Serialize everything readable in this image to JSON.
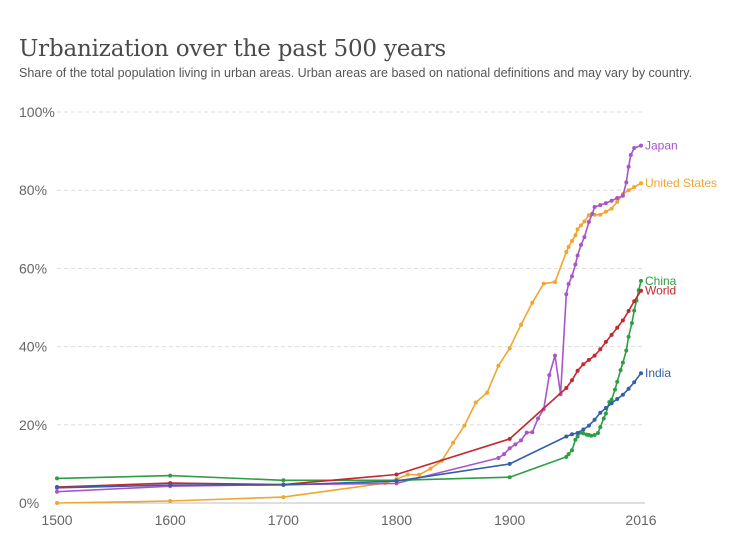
{
  "chart_data": {
    "type": "line",
    "title": "Urbanization over the past 500 years",
    "subtitle": "Share of the total population living in urban areas. Urban areas are based on national definitions and may vary by country.",
    "xlabel": "",
    "ylabel": "",
    "xlim": [
      1500,
      2016
    ],
    "ylim": [
      0,
      100
    ],
    "x_ticks": [
      1500,
      1600,
      1700,
      1800,
      1900,
      2016
    ],
    "y_ticks": [
      0,
      20,
      40,
      60,
      80,
      100
    ],
    "y_tick_format": "{v}%",
    "grid": "horizontal dashed",
    "legend": "inline labels at line ends",
    "series": [
      {
        "name": "United States",
        "color": "#f0a62f",
        "points": [
          [
            1500,
            0
          ],
          [
            1600,
            0.5
          ],
          [
            1700,
            1.5
          ],
          [
            1790,
            5.1
          ],
          [
            1800,
            6.1
          ],
          [
            1810,
            7.3
          ],
          [
            1820,
            7.2
          ],
          [
            1830,
            8.8
          ],
          [
            1840,
            10.8
          ],
          [
            1850,
            15.4
          ],
          [
            1860,
            19.8
          ],
          [
            1870,
            25.7
          ],
          [
            1880,
            28.2
          ],
          [
            1890,
            35.1
          ],
          [
            1900,
            39.6
          ],
          [
            1910,
            45.6
          ],
          [
            1920,
            51.2
          ],
          [
            1930,
            56.1
          ],
          [
            1940,
            56.5
          ],
          [
            1950,
            64.2
          ],
          [
            1952,
            65.5
          ],
          [
            1955,
            67
          ],
          [
            1958,
            68.5
          ],
          [
            1960,
            70
          ],
          [
            1963,
            71
          ],
          [
            1966,
            72
          ],
          [
            1970,
            73.6
          ],
          [
            1975,
            73.7
          ],
          [
            1980,
            73.7
          ],
          [
            1985,
            74.5
          ],
          [
            1990,
            75.3
          ],
          [
            1995,
            77
          ],
          [
            2000,
            79
          ],
          [
            2005,
            80
          ],
          [
            2010,
            80.8
          ],
          [
            2016,
            81.8
          ]
        ]
      },
      {
        "name": "Japan",
        "color": "#a855c8",
        "points": [
          [
            1500,
            2.9
          ],
          [
            1600,
            4.3
          ],
          [
            1700,
            4.7
          ],
          [
            1800,
            5
          ],
          [
            1890,
            11.5
          ],
          [
            1895,
            12.5
          ],
          [
            1900,
            14
          ],
          [
            1905,
            15
          ],
          [
            1910,
            16
          ],
          [
            1915,
            18
          ],
          [
            1920,
            18.1
          ],
          [
            1925,
            21.6
          ],
          [
            1930,
            24
          ],
          [
            1935,
            32.7
          ],
          [
            1940,
            37.7
          ],
          [
            1945,
            27.8
          ],
          [
            1950,
            53.4
          ],
          [
            1952,
            56
          ],
          [
            1955,
            58
          ],
          [
            1958,
            61
          ],
          [
            1960,
            63.3
          ],
          [
            1963,
            66
          ],
          [
            1966,
            68
          ],
          [
            1970,
            71.9
          ],
          [
            1973,
            74
          ],
          [
            1975,
            75.7
          ],
          [
            1980,
            76.2
          ],
          [
            1985,
            76.7
          ],
          [
            1990,
            77.3
          ],
          [
            1995,
            78
          ],
          [
            2000,
            78.6
          ],
          [
            2003,
            82
          ],
          [
            2005,
            86
          ],
          [
            2007,
            89
          ],
          [
            2010,
            90.8
          ],
          [
            2016,
            91.4
          ]
        ]
      },
      {
        "name": "China",
        "color": "#2e9e44",
        "points": [
          [
            1500,
            6.3
          ],
          [
            1600,
            7
          ],
          [
            1700,
            5.8
          ],
          [
            1800,
            5.8
          ],
          [
            1900,
            6.6
          ],
          [
            1950,
            11.8
          ],
          [
            1952,
            12.5
          ],
          [
            1955,
            13.5
          ],
          [
            1958,
            16.2
          ],
          [
            1960,
            17
          ],
          [
            1962,
            18
          ],
          [
            1965,
            17.8
          ],
          [
            1968,
            17.5
          ],
          [
            1970,
            17.4
          ],
          [
            1972,
            17.2
          ],
          [
            1975,
            17.4
          ],
          [
            1978,
            17.9
          ],
          [
            1980,
            19.4
          ],
          [
            1983,
            21.6
          ],
          [
            1985,
            22.9
          ],
          [
            1988,
            25.8
          ],
          [
            1990,
            26.4
          ],
          [
            1993,
            29
          ],
          [
            1995,
            31
          ],
          [
            1998,
            34
          ],
          [
            2000,
            35.9
          ],
          [
            2003,
            39
          ],
          [
            2005,
            42.5
          ],
          [
            2008,
            46
          ],
          [
            2010,
            49.2
          ],
          [
            2012,
            51.8
          ],
          [
            2014,
            54.4
          ],
          [
            2016,
            56.8
          ]
        ]
      },
      {
        "name": "World",
        "color": "#c4272d",
        "points": [
          [
            1500,
            4.1
          ],
          [
            1600,
            5.1
          ],
          [
            1700,
            4.7
          ],
          [
            1800,
            7.3
          ],
          [
            1900,
            16.4
          ],
          [
            1950,
            29.4
          ],
          [
            1955,
            31.4
          ],
          [
            1960,
            33.8
          ],
          [
            1965,
            35.5
          ],
          [
            1970,
            36.6
          ],
          [
            1975,
            37.7
          ],
          [
            1980,
            39.3
          ],
          [
            1985,
            41.2
          ],
          [
            1990,
            43
          ],
          [
            1995,
            44.8
          ],
          [
            2000,
            46.7
          ],
          [
            2005,
            49.1
          ],
          [
            2010,
            51.6
          ],
          [
            2016,
            54.3
          ]
        ]
      },
      {
        "name": "India",
        "color": "#3360a9",
        "points": [
          [
            1500,
            3.9
          ],
          [
            1600,
            4.6
          ],
          [
            1700,
            4.6
          ],
          [
            1800,
            5.6
          ],
          [
            1900,
            10
          ],
          [
            1950,
            17
          ],
          [
            1955,
            17.6
          ],
          [
            1960,
            17.9
          ],
          [
            1965,
            18.8
          ],
          [
            1970,
            19.8
          ],
          [
            1975,
            21.3
          ],
          [
            1980,
            23.1
          ],
          [
            1985,
            24.3
          ],
          [
            1990,
            25.5
          ],
          [
            1995,
            26.6
          ],
          [
            2000,
            27.7
          ],
          [
            2005,
            29.2
          ],
          [
            2010,
            30.9
          ],
          [
            2016,
            33.2
          ]
        ]
      }
    ]
  }
}
